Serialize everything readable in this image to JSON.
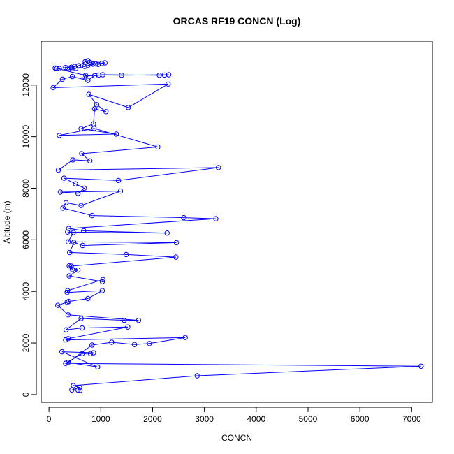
{
  "chart_data": {
    "type": "line",
    "title": "ORCAS RF19 CONCN (Log)",
    "xlabel": "CONCN",
    "ylabel": "Altitude (m)",
    "xlim": [
      -150,
      7400
    ],
    "ylim": [
      -300,
      13700
    ],
    "xticks": [
      0,
      1000,
      2000,
      3000,
      4000,
      5000,
      6000,
      7000
    ],
    "yticks": [
      0,
      2000,
      4000,
      6000,
      8000,
      10000,
      12000
    ],
    "xtick_labels": [
      "0",
      "1000",
      "2000",
      "3000",
      "4000",
      "5000",
      "6000",
      "7000"
    ],
    "ytick_labels": [
      "0",
      "2000",
      "4000",
      "6000",
      "8000",
      "10000",
      "12000"
    ],
    "grid": false,
    "marker": "open-circle",
    "color": "#0000ff",
    "points": [
      [
        600,
        160
      ],
      [
        560,
        170
      ],
      [
        440,
        180
      ],
      [
        590,
        280
      ],
      [
        470,
        350
      ],
      [
        2860,
        730
      ],
      [
        7180,
        1100
      ],
      [
        320,
        1210
      ],
      [
        640,
        1590
      ],
      [
        800,
        1590
      ],
      [
        860,
        1620
      ],
      [
        250,
        1660
      ],
      [
        940,
        1070
      ],
      [
        370,
        1250
      ],
      [
        830,
        1920
      ],
      [
        1210,
        2030
      ],
      [
        1650,
        1940
      ],
      [
        1940,
        1980
      ],
      [
        2630,
        2210
      ],
      [
        320,
        2120
      ],
      [
        370,
        2170
      ],
      [
        1520,
        2620
      ],
      [
        640,
        2580
      ],
      [
        330,
        2510
      ],
      [
        620,
        2950
      ],
      [
        1450,
        2880
      ],
      [
        1730,
        2880
      ],
      [
        370,
        3090
      ],
      [
        170,
        3460
      ],
      [
        350,
        3580
      ],
      [
        380,
        3610
      ],
      [
        750,
        3720
      ],
      [
        1030,
        4030
      ],
      [
        350,
        3960
      ],
      [
        360,
        4030
      ],
      [
        1040,
        4460
      ],
      [
        1030,
        4380
      ],
      [
        390,
        4600
      ],
      [
        560,
        4830
      ],
      [
        390,
        4990
      ],
      [
        450,
        4850
      ],
      [
        430,
        4980
      ],
      [
        2450,
        5330
      ],
      [
        1490,
        5430
      ],
      [
        400,
        5510
      ],
      [
        480,
        5900
      ],
      [
        650,
        5780
      ],
      [
        2460,
        5890
      ],
      [
        370,
        5920
      ],
      [
        470,
        6280
      ],
      [
        360,
        6300
      ],
      [
        2280,
        6260
      ],
      [
        670,
        6350
      ],
      [
        380,
        6440
      ],
      [
        3220,
        6820
      ],
      [
        2600,
        6860
      ],
      [
        830,
        6940
      ],
      [
        270,
        7230
      ],
      [
        330,
        7440
      ],
      [
        620,
        7330
      ],
      [
        1380,
        7890
      ],
      [
        220,
        7850
      ],
      [
        560,
        7800
      ],
      [
        680,
        8000
      ],
      [
        510,
        8170
      ],
      [
        290,
        8390
      ],
      [
        1340,
        8300
      ],
      [
        3270,
        8800
      ],
      [
        180,
        8700
      ],
      [
        460,
        9100
      ],
      [
        790,
        9060
      ],
      [
        630,
        9340
      ],
      [
        2100,
        9600
      ],
      [
        870,
        10320
      ],
      [
        200,
        10050
      ],
      [
        1300,
        10100
      ],
      [
        620,
        10310
      ],
      [
        860,
        10500
      ],
      [
        880,
        11080
      ],
      [
        1100,
        10970
      ],
      [
        920,
        11240
      ],
      [
        770,
        11640
      ],
      [
        1530,
        11130
      ],
      [
        2300,
        12040
      ],
      [
        80,
        11900
      ],
      [
        260,
        12230
      ],
      [
        450,
        12330
      ],
      [
        750,
        12180
      ],
      [
        880,
        12360
      ],
      [
        1040,
        12400
      ],
      [
        2130,
        12380
      ],
      [
        2230,
        12390
      ],
      [
        2310,
        12400
      ],
      [
        1400,
        12380
      ],
      [
        960,
        12390
      ],
      [
        680,
        12340
      ],
      [
        710,
        12370
      ],
      [
        120,
        12660
      ],
      [
        150,
        12640
      ],
      [
        200,
        12640
      ],
      [
        320,
        12680
      ],
      [
        430,
        12690
      ],
      [
        490,
        12720
      ],
      [
        570,
        12750
      ],
      [
        700,
        12900
      ],
      [
        750,
        12940
      ],
      [
        790,
        12880
      ],
      [
        820,
        12850
      ],
      [
        900,
        12820
      ],
      [
        950,
        12800
      ],
      [
        1020,
        12840
      ],
      [
        1080,
        12860
      ],
      [
        850,
        12810
      ],
      [
        750,
        12760
      ],
      [
        690,
        12720
      ],
      [
        520,
        12650
      ],
      [
        440,
        12640
      ],
      [
        360,
        12660
      ]
    ]
  }
}
